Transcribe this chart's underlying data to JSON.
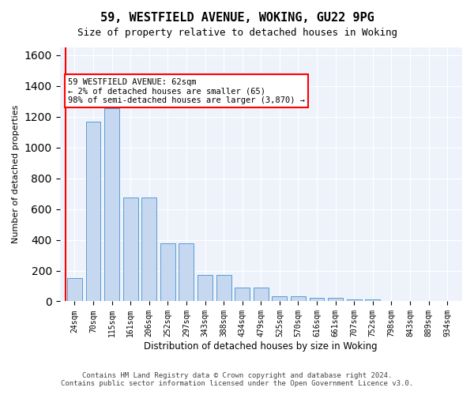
{
  "title_line1": "59, WESTFIELD AVENUE, WOKING, GU22 9PG",
  "title_line2": "Size of property relative to detached houses in Woking",
  "xlabel": "Distribution of detached houses by size in Woking",
  "ylabel": "Number of detached properties",
  "bar_labels": [
    "24sqm",
    "70sqm",
    "115sqm",
    "161sqm",
    "206sqm",
    "252sqm",
    "297sqm",
    "343sqm",
    "388sqm",
    "434sqm",
    "479sqm",
    "525sqm",
    "570sqm",
    "616sqm",
    "661sqm",
    "707sqm",
    "752sqm",
    "798sqm",
    "843sqm",
    "889sqm",
    "934sqm"
  ],
  "bar_values": [
    150,
    1170,
    1255,
    675,
    675,
    375,
    375,
    170,
    170,
    90,
    90,
    35,
    35,
    25,
    25,
    15,
    15,
    0,
    0,
    0,
    0
  ],
  "bar_color": "#c5d8f0",
  "bar_edge_color": "#5b9bd5",
  "vline_x": 0,
  "vline_color": "red",
  "annotation_text": "59 WESTFIELD AVENUE: 62sqm\n← 2% of detached houses are smaller (65)\n98% of semi-detached houses are larger (3,870) →",
  "annotation_box_color": "white",
  "annotation_box_edge": "red",
  "ylim": [
    0,
    1650
  ],
  "yticks": [
    0,
    200,
    400,
    600,
    800,
    1000,
    1200,
    1400,
    1600
  ],
  "background_color": "#eef3fb",
  "grid_color": "white",
  "footer_line1": "Contains HM Land Registry data © Crown copyright and database right 2024.",
  "footer_line2": "Contains public sector information licensed under the Open Government Licence v3.0."
}
